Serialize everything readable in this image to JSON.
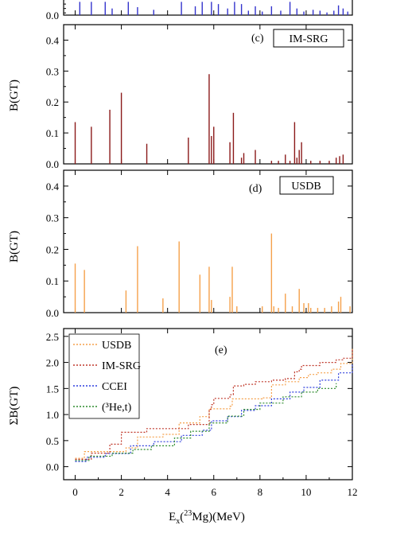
{
  "chart_data": [
    {
      "type": "bar",
      "panel_label": "",
      "model_label": "",
      "ylabel": "",
      "ylim": [
        0,
        0.45
      ],
      "yticks": [
        "0.0"
      ],
      "color": "#3333cc",
      "x": [
        0.2,
        0.7,
        1.3,
        1.6,
        2.3,
        2.7,
        3.4,
        4.6,
        5.2,
        5.5,
        5.9,
        6.2,
        6.6,
        6.9,
        7.2,
        7.5,
        7.8,
        8.1,
        8.5,
        8.9,
        9.3,
        9.6,
        9.9,
        10.3,
        10.6,
        10.9,
        11.2,
        11.4,
        11.6,
        11.8
      ],
      "values": [
        0.3,
        0.3,
        0.3,
        0.15,
        0.3,
        0.18,
        0.12,
        0.3,
        0.2,
        0.3,
        0.3,
        0.25,
        0.15,
        0.3,
        0.25,
        0.1,
        0.2,
        0.08,
        0.2,
        0.1,
        0.3,
        0.15,
        0.08,
        0.12,
        0.1,
        0.06,
        0.1,
        0.22,
        0.15,
        0.08
      ]
    },
    {
      "type": "bar",
      "panel_label": "(c)",
      "model_label": "IM-SRG",
      "ylabel": "B(GT)",
      "ylim": [
        0,
        0.45
      ],
      "yticks": [
        "0.0",
        "0.1",
        "0.2",
        "0.3",
        "0.4"
      ],
      "color": "#8b1a1a",
      "x": [
        0.0,
        0.7,
        1.5,
        2.0,
        3.1,
        4.9,
        5.8,
        5.9,
        6.0,
        6.7,
        6.85,
        7.2,
        7.3,
        7.8,
        8.5,
        8.8,
        9.1,
        9.3,
        9.5,
        9.6,
        9.7,
        9.8,
        10.2,
        10.6,
        11.0,
        11.3,
        11.45,
        11.6
      ],
      "values": [
        0.135,
        0.12,
        0.175,
        0.23,
        0.065,
        0.085,
        0.29,
        0.09,
        0.12,
        0.07,
        0.165,
        0.02,
        0.035,
        0.045,
        0.01,
        0.01,
        0.03,
        0.01,
        0.135,
        0.02,
        0.045,
        0.07,
        0.01,
        0.01,
        0.01,
        0.02,
        0.025,
        0.03
      ]
    },
    {
      "type": "bar",
      "panel_label": "(d)",
      "model_label": "USDB",
      "ylabel": "B(GT)",
      "ylim": [
        0,
        0.45
      ],
      "yticks": [
        "0.0",
        "0.1",
        "0.2",
        "0.3",
        "0.4"
      ],
      "color": "#f5a04a",
      "x": [
        0.0,
        0.4,
        2.2,
        2.7,
        3.8,
        4.5,
        5.4,
        5.8,
        5.9,
        6.7,
        6.8,
        7.0,
        8.1,
        8.5,
        8.6,
        8.8,
        9.1,
        9.4,
        9.7,
        9.9,
        10.1,
        10.2,
        10.5,
        10.8,
        11.1,
        11.4,
        11.5,
        11.9
      ],
      "values": [
        0.155,
        0.135,
        0.07,
        0.21,
        0.045,
        0.225,
        0.12,
        0.145,
        0.04,
        0.05,
        0.145,
        0.02,
        0.02,
        0.25,
        0.02,
        0.015,
        0.06,
        0.02,
        0.075,
        0.03,
        0.03,
        0.015,
        0.015,
        0.015,
        0.02,
        0.035,
        0.05,
        0.02
      ]
    },
    {
      "type": "line",
      "panel_label": "(e)",
      "ylabel": "ΣB(GT)",
      "xlabel_main": "E",
      "xlabel_sub": "x",
      "xlabel_paren_open": "(",
      "xlabel_sup": "23",
      "xlabel_tail": "Mg)(MeV)",
      "xlim": [
        -0.5,
        12
      ],
      "ylim": [
        -0.25,
        2.65
      ],
      "xticks": [
        "0",
        "2",
        "4",
        "6",
        "8",
        "10",
        "12"
      ],
      "yticks": [
        "0.0",
        "0.5",
        "1.0",
        "1.5",
        "2.0",
        "2.5"
      ],
      "series": [
        {
          "name": "USDB",
          "color": "#f5a04a",
          "x": [
            0,
            0.4,
            2.2,
            2.7,
            3.8,
            4.5,
            5.4,
            5.8,
            6.7,
            6.8,
            8.1,
            8.5,
            9.1,
            9.7,
            10.1,
            10.5,
            11.1,
            11.5,
            12
          ],
          "y": [
            0.16,
            0.29,
            0.36,
            0.57,
            0.62,
            0.84,
            0.96,
            1.11,
            1.16,
            1.3,
            1.32,
            1.57,
            1.63,
            1.71,
            1.77,
            1.8,
            1.87,
            1.98,
            2.28
          ]
        },
        {
          "name": "IM-SRG",
          "color": "#c0392b",
          "x": [
            0,
            0.7,
            1.5,
            2.0,
            3.1,
            4.9,
            5.8,
            5.9,
            6.0,
            6.7,
            6.85,
            7.3,
            7.8,
            8.5,
            9.1,
            9.5,
            9.7,
            9.8,
            10.6,
            11.3,
            11.6,
            12
          ],
          "y": [
            0.14,
            0.26,
            0.43,
            0.66,
            0.73,
            0.81,
            1.1,
            1.19,
            1.31,
            1.38,
            1.55,
            1.58,
            1.63,
            1.66,
            1.69,
            1.82,
            1.87,
            1.94,
            2.0,
            2.05,
            2.08,
            2.25
          ]
        },
        {
          "name": "CCEI",
          "color": "#2f3fdd",
          "x": [
            0,
            0.5,
            1.3,
            2.4,
            3.4,
            4.6,
            5.5,
            5.9,
            6.6,
            7.2,
            7.8,
            8.5,
            9.3,
            9.9,
            10.6,
            11.4,
            12
          ],
          "y": [
            0.1,
            0.18,
            0.25,
            0.4,
            0.48,
            0.6,
            0.7,
            0.88,
            0.96,
            1.08,
            1.17,
            1.3,
            1.43,
            1.52,
            1.66,
            1.8,
            1.98
          ]
        },
        {
          "name": "(³He,t)",
          "color": "#2e8b2e",
          "x": [
            0,
            0.6,
            1.6,
            2.5,
            3.3,
            4.3,
            5.0,
            5.8,
            6.6,
            7.3,
            8.0,
            9.0,
            9.8,
            10.5,
            11.3
          ],
          "y": [
            0.12,
            0.2,
            0.26,
            0.33,
            0.4,
            0.55,
            0.68,
            0.84,
            0.97,
            1.1,
            1.22,
            1.34,
            1.43,
            1.5,
            1.6
          ]
        }
      ]
    }
  ]
}
